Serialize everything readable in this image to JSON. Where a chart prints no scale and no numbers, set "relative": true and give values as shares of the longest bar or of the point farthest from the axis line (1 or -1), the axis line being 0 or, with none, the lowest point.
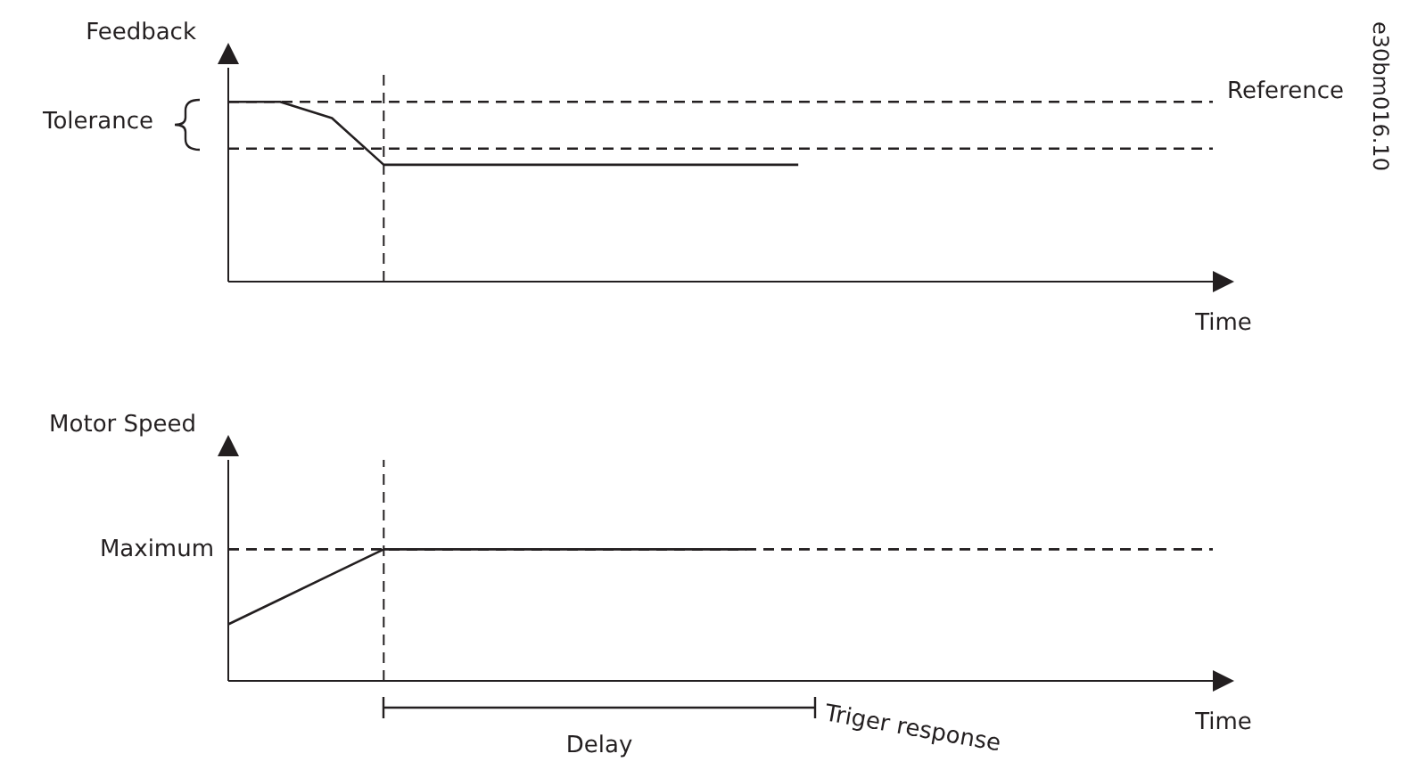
{
  "chart_data": [
    {
      "type": "line",
      "relative": true,
      "ylabel": "Feedback",
      "xlabel": "Time",
      "categories": [
        null,
        null,
        null,
        null,
        null,
        null,
        null,
        null,
        null,
        null,
        null,
        null,
        null,
        null,
        null,
        null,
        null,
        null,
        null,
        null
      ],
      "series": [
        {
          "color": "#231f20",
          "values": [
            1,
            1,
            0.91,
            0.65,
            0.65,
            0.65,
            0.65,
            0.65,
            0.65,
            0.65,
            0.65,
            0.65,
            null,
            null,
            null,
            null,
            null,
            null,
            null,
            null
          ]
        },
        {
          "name": "Reference",
          "color": "#231f20",
          "line_style": "dashed",
          "values": [
            1,
            1,
            1,
            1,
            1,
            1,
            1,
            1,
            1,
            1,
            1,
            1,
            1,
            1,
            1,
            1,
            1,
            1,
            1,
            1
          ]
        },
        {
          "color": "#231f20",
          "line_style": "dashed",
          "values": [
            0.74,
            0.74,
            0.74,
            0.74,
            0.74,
            0.74,
            0.74,
            0.74,
            0.74,
            0.74,
            0.74,
            0.74,
            0.74,
            0.74,
            0.74,
            0.74,
            0.74,
            0.74,
            0.74,
            0.74
          ]
        }
      ],
      "annotations": [
        "Tolerance",
        "e30bm016.10"
      ],
      "grid": false,
      "legend": false,
      "marker": "none",
      "line_style": "solid"
    },
    {
      "type": "line",
      "relative": true,
      "ylabel": "Motor Speed",
      "xlabel": "Time",
      "categories": [
        null,
        null,
        null,
        null,
        null,
        null,
        null,
        null,
        null,
        null,
        null,
        null,
        null,
        null,
        null,
        null,
        null,
        null,
        null,
        null
      ],
      "series": [
        {
          "color": "#231f20",
          "values": [
            0.43,
            0.62,
            0.81,
            1,
            1,
            1,
            1,
            1,
            1,
            1,
            1,
            null,
            null,
            null,
            null,
            null,
            null,
            null,
            null,
            null
          ]
        },
        {
          "name": "Maximum",
          "color": "#231f20",
          "line_style": "dashed",
          "values": [
            1,
            1,
            1,
            1,
            1,
            1,
            1,
            1,
            1,
            1,
            1,
            1,
            1,
            1,
            1,
            1,
            1,
            1,
            1,
            1
          ]
        }
      ],
      "annotations": [
        "Delay",
        "Triger response"
      ],
      "grid": false,
      "legend": false,
      "marker": "none",
      "line_style": "solid"
    }
  ]
}
